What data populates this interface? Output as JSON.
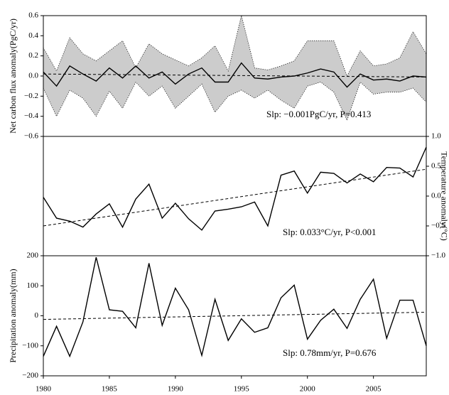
{
  "chart_data": [
    {
      "type": "line",
      "y_axis_side": "left",
      "y_label": "Net carbon flux anomaly(PgC/yr)",
      "annotation": "Slp: −0.001PgC/yr, P=0.413",
      "x": [
        1980,
        1981,
        1982,
        1983,
        1984,
        1985,
        1986,
        1987,
        1988,
        1989,
        1990,
        1991,
        1992,
        1993,
        1994,
        1995,
        1996,
        1997,
        1998,
        1999,
        2000,
        2001,
        2002,
        2003,
        2004,
        2005,
        2006,
        2007,
        2008,
        2009
      ],
      "xlim": [
        1980,
        2009
      ],
      "values": [
        0.04,
        -0.1,
        0.1,
        0.02,
        -0.05,
        0.08,
        -0.02,
        0.1,
        -0.02,
        0.04,
        -0.08,
        0.02,
        0.08,
        -0.06,
        -0.06,
        0.13,
        -0.02,
        -0.03,
        -0.01,
        0.0,
        0.03,
        0.07,
        0.04,
        -0.11,
        0.02,
        -0.04,
        -0.03,
        -0.05,
        0.0,
        -0.01
      ],
      "color": "#000000",
      "band": {
        "upper": [
          0.28,
          0.05,
          0.38,
          0.22,
          0.15,
          0.25,
          0.35,
          0.08,
          0.32,
          0.22,
          0.16,
          0.1,
          0.18,
          0.3,
          0.05,
          0.6,
          0.08,
          0.06,
          0.1,
          0.15,
          0.35,
          0.35,
          0.35,
          0.0,
          0.25,
          0.1,
          0.12,
          0.18,
          0.44,
          0.22
        ],
        "lower": [
          -0.12,
          -0.4,
          -0.14,
          -0.22,
          -0.4,
          -0.15,
          -0.32,
          -0.06,
          -0.2,
          -0.1,
          -0.32,
          -0.2,
          -0.08,
          -0.36,
          -0.2,
          -0.14,
          -0.22,
          -0.14,
          -0.24,
          -0.32,
          -0.1,
          -0.06,
          -0.16,
          -0.44,
          -0.06,
          -0.18,
          -0.16,
          -0.16,
          -0.12,
          -0.26
        ],
        "color": "#cccccc"
      },
      "trend": {
        "x": [
          1980,
          2009
        ],
        "values": [
          0.02,
          -0.01
        ]
      },
      "ylim": [
        -0.6,
        0.6
      ],
      "yticks": [
        {
          "value": -0.6,
          "label": "−0.6"
        },
        {
          "value": -0.4,
          "label": "−0.4"
        },
        {
          "value": -0.2,
          "label": "−0.2"
        },
        {
          "value": 0,
          "label": "0.0"
        },
        {
          "value": 0.2,
          "label": "0.2"
        },
        {
          "value": 0.4,
          "label": "0.4"
        },
        {
          "value": 0.6,
          "label": "0.6"
        }
      ]
    },
    {
      "type": "line",
      "y_axis_side": "right",
      "y_label": "Temperature anomaly(°C)",
      "annotation": "Slp: 0.033°C/yr, P<0.001",
      "x": [
        1980,
        1981,
        1982,
        1983,
        1984,
        1985,
        1986,
        1987,
        1988,
        1989,
        1990,
        1991,
        1992,
        1993,
        1994,
        1995,
        1996,
        1997,
        1998,
        1999,
        2000,
        2001,
        2002,
        2003,
        2004,
        2005,
        2006,
        2007,
        2008,
        2009
      ],
      "xlim": [
        1980,
        2009
      ],
      "values": [
        -0.02,
        -0.37,
        -0.42,
        -0.52,
        -0.3,
        -0.13,
        -0.52,
        -0.05,
        0.2,
        -0.37,
        -0.12,
        -0.38,
        -0.57,
        -0.25,
        -0.22,
        -0.18,
        -0.1,
        -0.5,
        0.35,
        0.42,
        0.05,
        0.4,
        0.38,
        0.22,
        0.37,
        0.24,
        0.48,
        0.47,
        0.32,
        0.82
      ],
      "color": "#000000",
      "trend": {
        "x": [
          1980,
          2009
        ],
        "values": [
          -0.5,
          0.45
        ]
      },
      "ylim": [
        -1.0,
        1.0
      ],
      "yticks": [
        {
          "value": -1.0,
          "label": "−1.0"
        },
        {
          "value": -0.5,
          "label": "−0.5"
        },
        {
          "value": 0,
          "label": "0.0"
        },
        {
          "value": 0.5,
          "label": "0.5"
        },
        {
          "value": 1.0,
          "label": "1.0"
        }
      ]
    },
    {
      "type": "line",
      "y_axis_side": "left",
      "y_label": "Precipitation anomaly(mm)",
      "annotation": "Slp: 0.78mm/yr, P=0.676",
      "x": [
        1980,
        1981,
        1982,
        1983,
        1984,
        1985,
        1986,
        1987,
        1988,
        1989,
        1990,
        1991,
        1992,
        1993,
        1994,
        1995,
        1996,
        1997,
        1998,
        1999,
        2000,
        2001,
        2002,
        2003,
        2004,
        2005,
        2006,
        2007,
        2008,
        2009
      ],
      "xlim": [
        1980,
        2009
      ],
      "values": [
        -135,
        -35,
        -135,
        -20,
        195,
        20,
        15,
        -40,
        175,
        -32,
        92,
        20,
        -132,
        55,
        -82,
        -10,
        -55,
        -40,
        60,
        102,
        -78,
        -15,
        22,
        -42,
        55,
        122,
        -75,
        52,
        52,
        -100
      ],
      "color": "#000000",
      "trend": {
        "x": [
          1980,
          2009
        ],
        "values": [
          -12,
          12
        ]
      },
      "ylim": [
        -200,
        200
      ],
      "yticks": [
        {
          "value": -200,
          "label": "−200"
        },
        {
          "value": -100,
          "label": "−100"
        },
        0,
        100,
        200
      ],
      "xticks": [
        1980,
        1985,
        1990,
        1995,
        2000,
        2005
      ]
    }
  ]
}
